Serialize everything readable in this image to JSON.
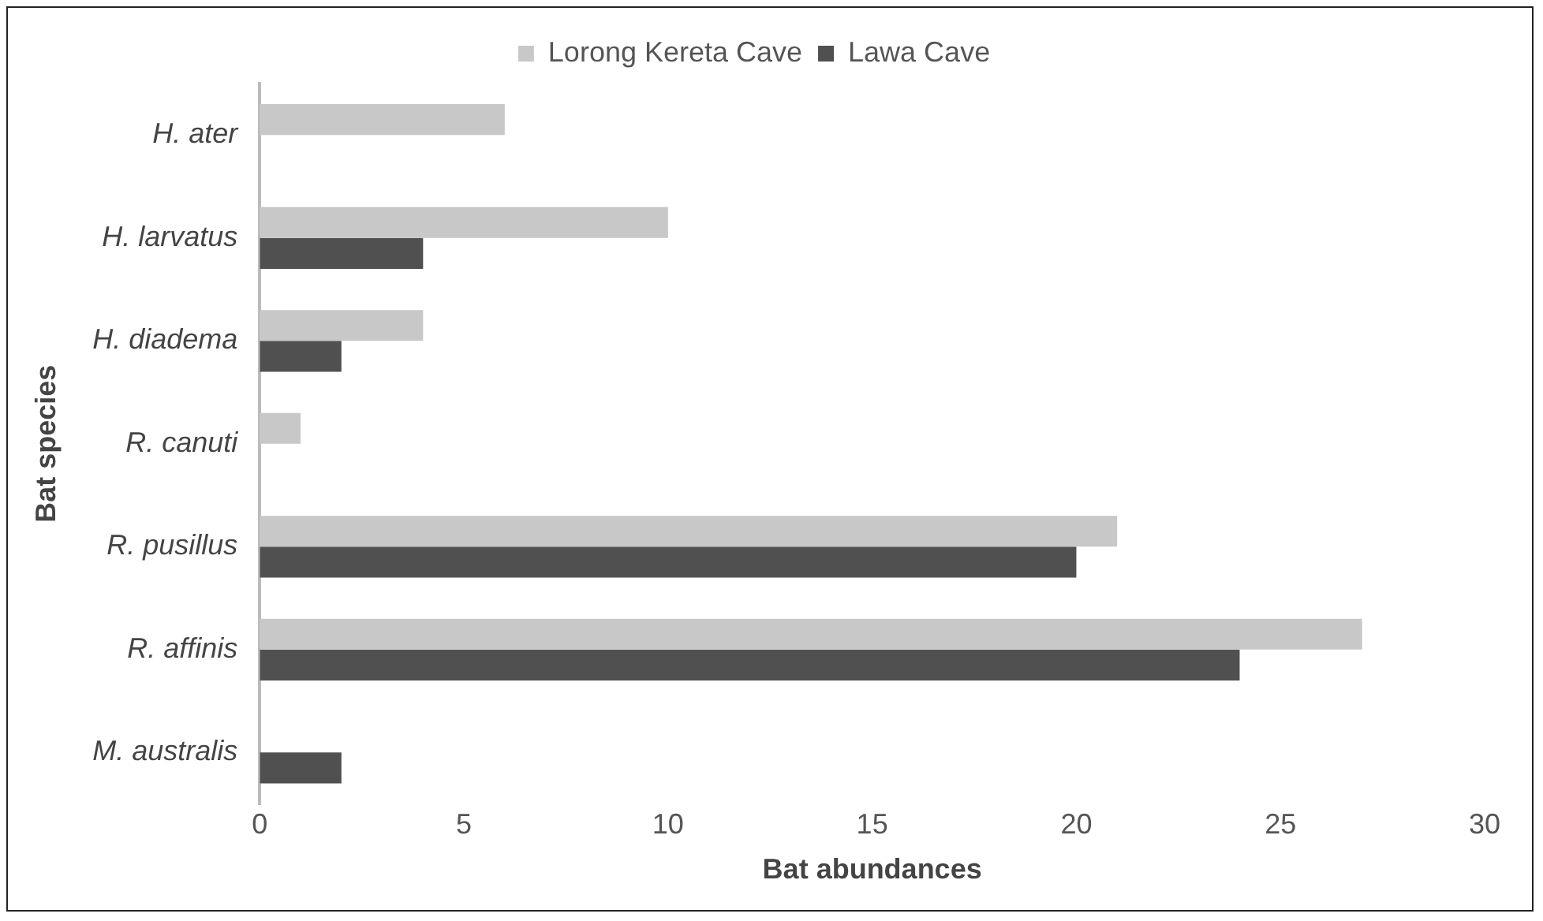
{
  "chart_data": {
    "type": "bar",
    "orientation": "horizontal",
    "xlabel": "Bat abundances",
    "ylabel": "Bat species",
    "categories": [
      "H. ater",
      "H. larvatus",
      "H. diadema",
      "R. canuti",
      "R. pusillus",
      "R. affinis",
      "M. australis"
    ],
    "series": [
      {
        "name": "Lorong Kereta Cave",
        "color": "#c8c8c8",
        "values": [
          6,
          10,
          4,
          1,
          21,
          27,
          null
        ]
      },
      {
        "name": "Lawa Cave",
        "color": "#505050",
        "values": [
          null,
          4,
          2,
          null,
          20,
          24,
          2
        ]
      }
    ],
    "xlim": [
      0,
      30
    ],
    "xticks": [
      0,
      5,
      10,
      15,
      20,
      25,
      30
    ],
    "grid": false,
    "legend": "top"
  }
}
